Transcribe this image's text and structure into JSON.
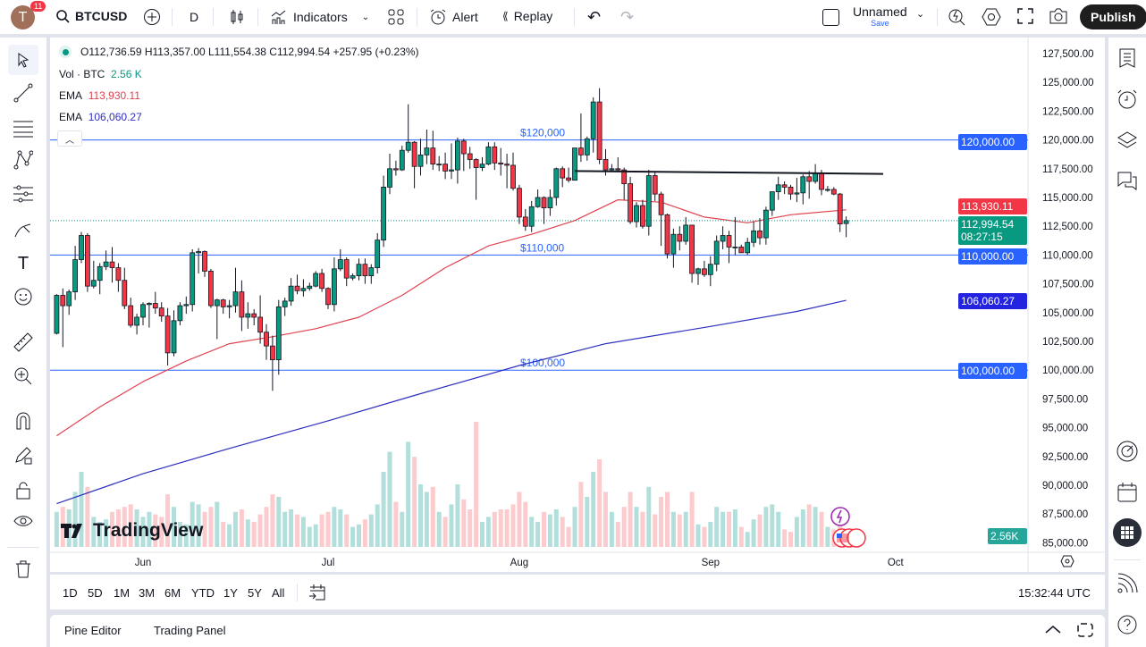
{
  "topbar": {
    "avatar_letter": "T",
    "notification_count": "11",
    "symbol": "BTCUSD",
    "interval": "D",
    "indicators_label": "Indicators",
    "alert_label": "Alert",
    "replay_label": "Replay",
    "layout_name": "Unnamed",
    "save_label": "Save",
    "publish_label": "Publish"
  },
  "legend": {
    "ohlc": "O112,736.59 H113,357.00 L111,554.38 C112,994.54 +257.95 (+0.23%)",
    "vol_label": "Vol · BTC",
    "vol_value": "2.56 K",
    "ema1_label": "EMA",
    "ema1_value": "113,930.11",
    "ema2_label": "EMA",
    "ema2_value": "106,060.27"
  },
  "price_axis": {
    "ticks": [
      "127,500.00",
      "125,000.00",
      "122,500.00",
      "120,000.00",
      "117,500.00",
      "115,000.00",
      "112,500.00",
      "110,000.00",
      "107,500.00",
      "105,000.00",
      "102,500.00",
      "100,000.00",
      "97,500.00",
      "95,000.00",
      "92,500.00",
      "90,000.00",
      "87,500.00",
      "85,000.00"
    ],
    "badges": {
      "line_120k": "120,000.00",
      "line_110k": "110,000.00",
      "line_100k": "100,000.00",
      "ema1": "113,930.11",
      "last_price": "112,994.54",
      "countdown": "08:27:15",
      "ema2": "106,060.27",
      "volume": "2.56K"
    }
  },
  "time_axis": {
    "labels": [
      "Jun",
      "Jul",
      "Aug",
      "Sep",
      "Oct"
    ]
  },
  "range_bar": {
    "ranges": [
      "1D",
      "5D",
      "1M",
      "3M",
      "6M",
      "YTD",
      "1Y",
      "5Y",
      "All"
    ],
    "clock": "15:32:44 UTC"
  },
  "bottom_panel": {
    "tabs": [
      "Pine Editor",
      "Trading Panel"
    ]
  },
  "watermark": "TradingView",
  "colors": {
    "up": "#089981",
    "down": "#f23645",
    "ema1": "#e0424f",
    "ema2": "#2e2ebf",
    "hline": "#2962ff",
    "vol_up": "#b2dfdb",
    "vol_down": "#fccbcd"
  },
  "chart_data": {
    "type": "candlestick",
    "symbol": "BTCUSD",
    "interval": "D",
    "ylim": [
      85000,
      127500
    ],
    "horizontal_lines": [
      {
        "price": 120000,
        "label": "$120,000"
      },
      {
        "price": 110000,
        "label": "$110,000"
      },
      {
        "price": 100000,
        "label": "$100,000"
      }
    ],
    "trendline": {
      "from": {
        "date": "Aug 10",
        "price": 117300
      },
      "to": {
        "date": "Sep 29",
        "price": 117050
      }
    },
    "dates_start": "May 18",
    "dates_end": "Sep 23",
    "ohlc": [
      [
        103200,
        106600,
        103100,
        106500
      ],
      [
        106500,
        107100,
        102000,
        105600
      ],
      [
        105600,
        107000,
        104800,
        106800
      ],
      [
        106800,
        110800,
        106100,
        109600
      ],
      [
        109600,
        112000,
        109300,
        111700
      ],
      [
        111700,
        111900,
        106800,
        107300
      ],
      [
        107300,
        109500,
        107100,
        107800
      ],
      [
        107800,
        109300,
        106600,
        109000
      ],
      [
        109000,
        110400,
        108700,
        109400
      ],
      [
        109400,
        110700,
        107600,
        108900
      ],
      [
        108900,
        109300,
        106800,
        107800
      ],
      [
        107800,
        108900,
        105300,
        105600
      ],
      [
        105600,
        106300,
        103700,
        103900
      ],
      [
        103900,
        104900,
        103100,
        104600
      ],
      [
        104600,
        105900,
        103900,
        105700
      ],
      [
        105700,
        105900,
        103700,
        105800
      ],
      [
        105800,
        106800,
        104900,
        105400
      ],
      [
        105400,
        105900,
        104200,
        104700
      ],
      [
        104700,
        105400,
        100400,
        101500
      ],
      [
        101500,
        105200,
        101200,
        104300
      ],
      [
        104300,
        105900,
        103900,
        105600
      ],
      [
        105600,
        106400,
        104900,
        105700
      ],
      [
        105700,
        110500,
        105100,
        110200
      ],
      [
        110200,
        110600,
        108400,
        110300
      ],
      [
        110300,
        110400,
        108100,
        108600
      ],
      [
        108600,
        108800,
        105400,
        105600
      ],
      [
        105600,
        106200,
        102700,
        106100
      ],
      [
        106100,
        106200,
        104900,
        105500
      ],
      [
        105500,
        106100,
        104500,
        105600
      ],
      [
        105600,
        108900,
        105000,
        106800
      ],
      [
        106800,
        107800,
        103400,
        104600
      ],
      [
        104600,
        105900,
        103600,
        104900
      ],
      [
        104900,
        105300,
        103900,
        104600
      ],
      [
        104600,
        106500,
        102300,
        103300
      ],
      [
        103300,
        104000,
        100900,
        102100
      ],
      [
        102100,
        103000,
        98200,
        100900
      ],
      [
        100900,
        106100,
        99600,
        105500
      ],
      [
        105500,
        106300,
        104700,
        106000
      ],
      [
        106000,
        108000,
        105600,
        107300
      ],
      [
        107300,
        108300,
        106600,
        106900
      ],
      [
        106900,
        107900,
        106400,
        107100
      ],
      [
        107100,
        107600,
        106900,
        107300
      ],
      [
        107300,
        108600,
        107200,
        108400
      ],
      [
        108400,
        108800,
        106800,
        107100
      ],
      [
        107100,
        107200,
        105300,
        105700
      ],
      [
        105700,
        109800,
        105100,
        108800
      ],
      [
        108800,
        110500,
        108600,
        109600
      ],
      [
        109600,
        109800,
        107300,
        108000
      ],
      [
        108000,
        108400,
        107800,
        108200
      ],
      [
        108200,
        109700,
        107800,
        109200
      ],
      [
        109200,
        109700,
        107500,
        108200
      ],
      [
        108200,
        109200,
        107500,
        108900
      ],
      [
        108900,
        111900,
        108400,
        111300
      ],
      [
        111300,
        116900,
        110700,
        115900
      ],
      [
        115900,
        118800,
        115300,
        117500
      ],
      [
        117500,
        118200,
        116900,
        117400
      ],
      [
        117400,
        119500,
        117300,
        119100
      ],
      [
        119100,
        123100,
        118900,
        119800
      ],
      [
        119800,
        119900,
        115800,
        117700
      ],
      [
        117700,
        120100,
        116900,
        118700
      ],
      [
        118700,
        120900,
        117900,
        119300
      ],
      [
        119300,
        120800,
        117400,
        117900
      ],
      [
        117900,
        118600,
        117300,
        117900
      ],
      [
        117900,
        118900,
        116600,
        117300
      ],
      [
        117300,
        119700,
        116600,
        117400
      ],
      [
        117400,
        120200,
        116200,
        119900
      ],
      [
        119900,
        120100,
        117300,
        118800
      ],
      [
        118800,
        119400,
        117500,
        118300
      ],
      [
        118300,
        118400,
        114800,
        117600
      ],
      [
        117600,
        118500,
        117300,
        117900
      ],
      [
        117900,
        119800,
        117800,
        119400
      ],
      [
        119400,
        119800,
        117400,
        118000
      ],
      [
        118000,
        119300,
        116900,
        117900
      ],
      [
        117900,
        118800,
        115800,
        117800
      ],
      [
        117800,
        118900,
        115600,
        115800
      ],
      [
        115800,
        116100,
        112700,
        113300
      ],
      [
        113300,
        114000,
        112100,
        112500
      ],
      [
        112500,
        114700,
        112000,
        114200
      ],
      [
        114200,
        115700,
        114100,
        115000
      ],
      [
        115000,
        115100,
        112700,
        114100
      ],
      [
        114100,
        115700,
        113400,
        115000
      ],
      [
        115000,
        117600,
        114300,
        117500
      ],
      [
        117500,
        117700,
        115900,
        116700
      ],
      [
        116700,
        117600,
        116300,
        116500
      ],
      [
        116500,
        119300,
        116500,
        119300
      ],
      [
        119300,
        122300,
        118100,
        118700
      ],
      [
        118700,
        120300,
        118200,
        120100
      ],
      [
        120100,
        123700,
        118900,
        123300
      ],
      [
        123300,
        124500,
        117900,
        118300
      ],
      [
        118300,
        119200,
        116900,
        117400
      ],
      [
        117400,
        117900,
        117200,
        117500
      ],
      [
        117500,
        118500,
        117300,
        117400
      ],
      [
        117400,
        117600,
        114800,
        116200
      ],
      [
        116200,
        116800,
        112700,
        112900
      ],
      [
        112900,
        114600,
        112400,
        114300
      ],
      [
        114300,
        114800,
        112300,
        112500
      ],
      [
        112500,
        117400,
        111700,
        116900
      ],
      [
        116900,
        117200,
        114700,
        115300
      ],
      [
        115300,
        115500,
        110800,
        113500
      ],
      [
        113500,
        113600,
        109700,
        110100
      ],
      [
        110100,
        112300,
        108900,
        111800
      ],
      [
        111800,
        112500,
        110400,
        111200
      ],
      [
        111200,
        113300,
        110900,
        112600
      ],
      [
        112600,
        112600,
        107600,
        108400
      ],
      [
        108400,
        108900,
        107400,
        108800
      ],
      [
        108800,
        109500,
        108100,
        108300
      ],
      [
        108300,
        109900,
        107300,
        109200
      ],
      [
        109200,
        111700,
        108600,
        111200
      ],
      [
        111200,
        112500,
        110500,
        111700
      ],
      [
        111700,
        112100,
        109300,
        110700
      ],
      [
        110700,
        113300,
        110000,
        110700
      ],
      [
        110700,
        110900,
        110200,
        110200
      ],
      [
        110200,
        111500,
        110000,
        111100
      ],
      [
        111100,
        112900,
        110700,
        112100
      ],
      [
        112100,
        113200,
        110900,
        111500
      ],
      [
        111500,
        114200,
        110900,
        113900
      ],
      [
        113900,
        115500,
        113400,
        115500
      ],
      [
        115500,
        116800,
        114800,
        116100
      ],
      [
        116100,
        116400,
        115300,
        115900
      ],
      [
        115900,
        116100,
        114800,
        115300
      ],
      [
        115300,
        116700,
        114600,
        115400
      ],
      [
        115400,
        117000,
        114400,
        116800
      ],
      [
        116800,
        117300,
        114900,
        116400
      ],
      [
        116400,
        117900,
        116200,
        117100
      ],
      [
        117100,
        117400,
        115200,
        115700
      ],
      [
        115700,
        116000,
        115500,
        115700
      ],
      [
        115700,
        115900,
        115200,
        115300
      ],
      [
        115300,
        115400,
        112000,
        112700
      ],
      [
        112736.59,
        113357.0,
        111554.38,
        112994.54
      ]
    ],
    "volume_k": [
      14,
      16,
      15,
      22,
      30,
      24,
      12,
      10,
      11,
      14,
      15,
      16,
      17,
      15,
      12,
      14,
      13,
      12,
      21,
      16,
      10,
      9,
      18,
      17,
      14,
      16,
      18,
      10,
      9,
      14,
      15,
      11,
      10,
      13,
      16,
      21,
      20,
      14,
      15,
      13,
      12,
      8,
      9,
      13,
      14,
      16,
      15,
      13,
      8,
      9,
      11,
      13,
      17,
      30,
      38,
      18,
      14,
      42,
      36,
      25,
      22,
      24,
      14,
      12,
      17,
      25,
      19,
      15,
      50,
      10,
      12,
      14,
      15,
      15,
      17,
      22,
      18,
      12,
      10,
      14,
      13,
      15,
      12,
      8,
      16,
      26,
      20,
      30,
      35,
      22,
      14,
      10,
      16,
      22,
      16,
      14,
      24,
      13,
      20,
      22,
      14,
      13,
      14,
      22,
      9,
      8,
      10,
      16,
      14,
      14,
      15,
      8,
      6,
      11,
      13,
      16,
      17,
      14,
      7,
      6,
      12,
      15,
      17,
      16,
      14,
      8,
      7,
      12,
      2.56
    ],
    "ema_fast": [
      [
        "May 18",
        94300
      ],
      [
        "May 25",
        96800
      ],
      [
        "Jun 1",
        99000
      ],
      [
        "Jun 8",
        100800
      ],
      [
        "Jun 15",
        102300
      ],
      [
        "Jun 22",
        102900
      ],
      [
        "Jun 29",
        103600
      ],
      [
        "Jul 6",
        104600
      ],
      [
        "Jul 13",
        106500
      ],
      [
        "Jul 20",
        108900
      ],
      [
        "Jul 27",
        110800
      ],
      [
        "Aug 3",
        111800
      ],
      [
        "Aug 10",
        113000
      ],
      [
        "Aug 17",
        114800
      ],
      [
        "Aug 24",
        114600
      ],
      [
        "Aug 31",
        113300
      ],
      [
        "Sep 7",
        112800
      ],
      [
        "Sep 14",
        113500
      ],
      [
        "Sep 23",
        113930.11
      ]
    ],
    "ema_slow": [
      [
        "May 18",
        88400
      ],
      [
        "Jun 1",
        91000
      ],
      [
        "Jun 15",
        93200
      ],
      [
        "Jul 1",
        95600
      ],
      [
        "Jul 15",
        97800
      ],
      [
        "Aug 1",
        100400
      ],
      [
        "Aug 15",
        102300
      ],
      [
        "Sep 1",
        103800
      ],
      [
        "Sep 15",
        105100
      ],
      [
        "Sep 23",
        106060.27
      ]
    ]
  }
}
